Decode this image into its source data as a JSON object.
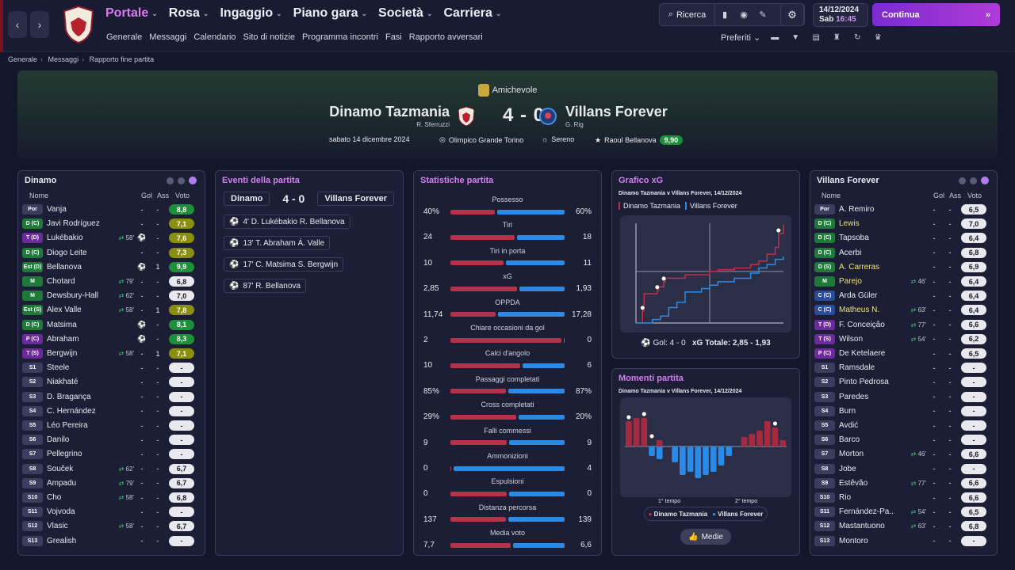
{
  "nav": {
    "menu": [
      "Portale",
      "Rosa",
      "Ingaggio",
      "Piano gara",
      "Società",
      "Carriera"
    ],
    "sub": [
      "Generale",
      "Messaggi",
      "Calendario",
      "Sito di notizie",
      "Programma incontri",
      "Fasi",
      "Rapporto avversari"
    ],
    "search": "Ricerca",
    "date": "14/12/2024",
    "day": "Sab",
    "time": "16:45",
    "continue": "Continua",
    "favorites": "Preferiti"
  },
  "breadcrumb": [
    "Generale",
    "Messaggi",
    "Rapporto fine partita"
  ],
  "match": {
    "competition": "Amichevole",
    "home": "Dinamo Tazmania",
    "home_mgr": "R. Sferruzzi",
    "away": "Villans Forever",
    "away_mgr": "G. Rig",
    "score": "4 - 0",
    "date": "sabato 14 dicembre 2024",
    "stadium": "Olimpico Grande Torino",
    "weather": "Sereno",
    "motm": "Raoul Bellanova",
    "motm_rating": "9,90"
  },
  "home_panel": {
    "title": "Dinamo",
    "headers": {
      "name": "Nome",
      "gol": "Gol",
      "ass": "Ass",
      "voto": "Voto"
    },
    "players": [
      {
        "pos": "Por",
        "c": "#3a3d5e",
        "name": "Vanja",
        "sub": "",
        "g": "-",
        "a": "-",
        "v": "8,8",
        "vc": "g"
      },
      {
        "pos": "D (C)",
        "c": "#1f7a3a",
        "name": "Javi Rodríguez",
        "sub": "",
        "g": "-",
        "a": "-",
        "v": "7,1",
        "vc": "y"
      },
      {
        "pos": "T (D)",
        "c": "#6a2a9a",
        "name": "Lukébakio",
        "sub": "58'",
        "g": "⚽",
        "a": "-",
        "v": "7,6",
        "vc": "y"
      },
      {
        "pos": "D (C)",
        "c": "#1f7a3a",
        "name": "Diogo Leite",
        "sub": "",
        "g": "-",
        "a": "-",
        "v": "7,3",
        "vc": "y"
      },
      {
        "pos": "Est (D)",
        "c": "#1f7a3a",
        "name": "Bellanova",
        "sub": "",
        "g": "⚽",
        "a": "1",
        "v": "9,9",
        "vc": "g"
      },
      {
        "pos": "M",
        "c": "#1f7a3a",
        "name": "Chotard",
        "sub": "79'",
        "g": "-",
        "a": "-",
        "v": "6,8",
        "vc": "n"
      },
      {
        "pos": "M",
        "c": "#1f7a3a",
        "name": "Dewsbury-Hall",
        "sub": "62'",
        "g": "-",
        "a": "-",
        "v": "7,0",
        "vc": "n"
      },
      {
        "pos": "Est (S)",
        "c": "#1f7a3a",
        "name": "Álex Valle",
        "sub": "58'",
        "g": "-",
        "a": "1",
        "v": "7,8",
        "vc": "y"
      },
      {
        "pos": "D (C)",
        "c": "#1f7a3a",
        "name": "Matsima",
        "sub": "",
        "g": "⚽",
        "a": "-",
        "v": "8,1",
        "vc": "g"
      },
      {
        "pos": "P (C)",
        "c": "#6a2a9a",
        "name": "Abraham",
        "sub": "",
        "g": "⚽",
        "a": "-",
        "v": "8,3",
        "vc": "g"
      },
      {
        "pos": "T (S)",
        "c": "#6a2a9a",
        "name": "Bergwijn",
        "sub": "58'",
        "g": "-",
        "a": "1",
        "v": "7,1",
        "vc": "y"
      },
      {
        "pos": "S1",
        "c": "#3a3d5e",
        "name": "Steele",
        "sub": "",
        "g": "-",
        "a": "-",
        "v": "-",
        "vc": "n"
      },
      {
        "pos": "S2",
        "c": "#3a3d5e",
        "name": "Niakhaté",
        "sub": "",
        "g": "-",
        "a": "-",
        "v": "-",
        "vc": "n"
      },
      {
        "pos": "S3",
        "c": "#3a3d5e",
        "name": "D. Bragança",
        "sub": "",
        "g": "-",
        "a": "-",
        "v": "-",
        "vc": "n"
      },
      {
        "pos": "S4",
        "c": "#3a3d5e",
        "name": "C. Hernández",
        "sub": "",
        "g": "-",
        "a": "-",
        "v": "-",
        "vc": "n"
      },
      {
        "pos": "S5",
        "c": "#3a3d5e",
        "name": "Léo Pereira",
        "sub": "",
        "g": "-",
        "a": "-",
        "v": "-",
        "vc": "n"
      },
      {
        "pos": "S6",
        "c": "#3a3d5e",
        "name": "Danilo",
        "sub": "",
        "g": "-",
        "a": "-",
        "v": "-",
        "vc": "n"
      },
      {
        "pos": "S7",
        "c": "#3a3d5e",
        "name": "Pellegrino",
        "sub": "",
        "g": "-",
        "a": "-",
        "v": "-",
        "vc": "n"
      },
      {
        "pos": "S8",
        "c": "#3a3d5e",
        "name": "Souček",
        "sub": "62'",
        "g": "-",
        "a": "-",
        "v": "6,7",
        "vc": "n"
      },
      {
        "pos": "S9",
        "c": "#3a3d5e",
        "name": "Ampadu",
        "sub": "79'",
        "g": "-",
        "a": "-",
        "v": "6,7",
        "vc": "n"
      },
      {
        "pos": "S10",
        "c": "#3a3d5e",
        "name": "Cho",
        "sub": "58'",
        "g": "-",
        "a": "-",
        "v": "6,8",
        "vc": "n"
      },
      {
        "pos": "S11",
        "c": "#3a3d5e",
        "name": "Vojvoda",
        "sub": "",
        "g": "-",
        "a": "-",
        "v": "-",
        "vc": "n"
      },
      {
        "pos": "S12",
        "c": "#3a3d5e",
        "name": "Vlasic",
        "sub": "58'",
        "g": "-",
        "a": "-",
        "v": "6,7",
        "vc": "n"
      },
      {
        "pos": "S13",
        "c": "#3a3d5e",
        "name": "Grealish",
        "sub": "",
        "g": "-",
        "a": "-",
        "v": "-",
        "vc": "n"
      }
    ]
  },
  "away_panel": {
    "title": "Villans Forever",
    "headers": {
      "name": "Nome",
      "gol": "Gol",
      "ass": "Ass",
      "voto": "Voto"
    },
    "players": [
      {
        "pos": "Por",
        "c": "#3a3d5e",
        "name": "Á. Remiro",
        "sub": "",
        "g": "-",
        "a": "-",
        "v": "6,5",
        "vc": "n",
        "y": false
      },
      {
        "pos": "D (C)",
        "c": "#1f7a3a",
        "name": "Lewis",
        "sub": "",
        "g": "-",
        "a": "-",
        "v": "7,0",
        "vc": "n",
        "y": true
      },
      {
        "pos": "D (C)",
        "c": "#1f7a3a",
        "name": "Tapsoba",
        "sub": "",
        "g": "-",
        "a": "-",
        "v": "6,4",
        "vc": "n",
        "y": false
      },
      {
        "pos": "D (C)",
        "c": "#1f7a3a",
        "name": "Acerbi",
        "sub": "",
        "g": "-",
        "a": "-",
        "v": "6,8",
        "vc": "n",
        "y": false
      },
      {
        "pos": "D (S)",
        "c": "#1f7a3a",
        "name": "A. Carreras",
        "sub": "",
        "g": "-",
        "a": "-",
        "v": "6,9",
        "vc": "n",
        "y": true
      },
      {
        "pos": "M",
        "c": "#1f7a3a",
        "name": "Parejo",
        "sub": "46'",
        "g": "-",
        "a": "-",
        "v": "6,4",
        "vc": "n",
        "y": true
      },
      {
        "pos": "C (C)",
        "c": "#2a4a9a",
        "name": "Arda Güler",
        "sub": "",
        "g": "-",
        "a": "-",
        "v": "6,4",
        "vc": "n",
        "y": false
      },
      {
        "pos": "C (C)",
        "c": "#2a4a9a",
        "name": "Matheus N.",
        "sub": "63'",
        "g": "-",
        "a": "-",
        "v": "6,4",
        "vc": "n",
        "y": true
      },
      {
        "pos": "T (D)",
        "c": "#6a2a9a",
        "name": "F. Conceição",
        "sub": "77'",
        "g": "-",
        "a": "-",
        "v": "6,6",
        "vc": "n",
        "y": false
      },
      {
        "pos": "T (S)",
        "c": "#6a2a9a",
        "name": "Wilson",
        "sub": "54'",
        "g": "-",
        "a": "-",
        "v": "6,2",
        "vc": "n",
        "y": false
      },
      {
        "pos": "P (C)",
        "c": "#6a2a9a",
        "name": "De Ketelaere",
        "sub": "",
        "g": "-",
        "a": "-",
        "v": "6,5",
        "vc": "n",
        "y": false
      },
      {
        "pos": "S1",
        "c": "#3a3d5e",
        "name": "Ramsdale",
        "sub": "",
        "g": "-",
        "a": "-",
        "v": "-",
        "vc": "n",
        "y": false
      },
      {
        "pos": "S2",
        "c": "#3a3d5e",
        "name": "Pinto Pedrosa",
        "sub": "",
        "g": "-",
        "a": "-",
        "v": "-",
        "vc": "n",
        "y": false
      },
      {
        "pos": "S3",
        "c": "#3a3d5e",
        "name": "Paredes",
        "sub": "",
        "g": "-",
        "a": "-",
        "v": "-",
        "vc": "n",
        "y": false
      },
      {
        "pos": "S4",
        "c": "#3a3d5e",
        "name": "Burn",
        "sub": "",
        "g": "-",
        "a": "-",
        "v": "-",
        "vc": "n",
        "y": false
      },
      {
        "pos": "S5",
        "c": "#3a3d5e",
        "name": "Avdić",
        "sub": "",
        "g": "-",
        "a": "-",
        "v": "-",
        "vc": "n",
        "y": false
      },
      {
        "pos": "S6",
        "c": "#3a3d5e",
        "name": "Barco",
        "sub": "",
        "g": "-",
        "a": "-",
        "v": "-",
        "vc": "n",
        "y": false
      },
      {
        "pos": "S7",
        "c": "#3a3d5e",
        "name": "Morton",
        "sub": "46'",
        "g": "-",
        "a": "-",
        "v": "6,6",
        "vc": "n",
        "y": false
      },
      {
        "pos": "S8",
        "c": "#3a3d5e",
        "name": "Jobe",
        "sub": "",
        "g": "-",
        "a": "-",
        "v": "-",
        "vc": "n",
        "y": false
      },
      {
        "pos": "S9",
        "c": "#3a3d5e",
        "name": "Estêvão",
        "sub": "77'",
        "g": "-",
        "a": "-",
        "v": "6,6",
        "vc": "n",
        "y": false
      },
      {
        "pos": "S10",
        "c": "#3a3d5e",
        "name": "Rio",
        "sub": "",
        "g": "-",
        "a": "-",
        "v": "6,6",
        "vc": "n",
        "y": false
      },
      {
        "pos": "S11",
        "c": "#3a3d5e",
        "name": "Fernández-Pa...",
        "sub": "54'",
        "g": "-",
        "a": "-",
        "v": "6,5",
        "vc": "n",
        "y": false
      },
      {
        "pos": "S12",
        "c": "#3a3d5e",
        "name": "Mastantuono",
        "sub": "63'",
        "g": "-",
        "a": "-",
        "v": "6,8",
        "vc": "n",
        "y": false
      },
      {
        "pos": "S13",
        "c": "#3a3d5e",
        "name": "Montoro",
        "sub": "",
        "g": "-",
        "a": "-",
        "v": "-",
        "vc": "n",
        "y": false
      }
    ]
  },
  "events": {
    "title": "Eventi della partita",
    "home": "Dinamo",
    "score": "4 - 0",
    "away": "Villans Forever",
    "items": [
      "4' D. Lukébakio R. Bellanova",
      "13' T. Abraham Á. Valle",
      "17' C. Matsima S. Bergwijn",
      "87' R. Bellanova"
    ]
  },
  "stats": {
    "title": "Statistiche partita",
    "rows": [
      {
        "label": "Possesso",
        "l": "40%",
        "r": "60%",
        "lv": 40,
        "rv": 60
      },
      {
        "label": "Tiri",
        "l": "24",
        "r": "18",
        "lv": 24,
        "rv": 18
      },
      {
        "label": "Tiri in porta",
        "l": "10",
        "r": "11",
        "lv": 10,
        "rv": 11
      },
      {
        "label": "xG",
        "l": "2,85",
        "r": "1,93",
        "lv": 2.85,
        "rv": 1.93
      },
      {
        "label": "OPPDA",
        "l": "11,74",
        "r": "17,28",
        "lv": 11.74,
        "rv": 17.28
      },
      {
        "label": "Chiare occasioni da gol",
        "l": "2",
        "r": "0",
        "lv": 2,
        "rv": 0
      },
      {
        "label": "Calci d'angolo",
        "l": "10",
        "r": "6",
        "lv": 10,
        "rv": 6
      },
      {
        "label": "Passaggi completati",
        "l": "85%",
        "r": "87%",
        "lv": 85,
        "rv": 87
      },
      {
        "label": "Cross completati",
        "l": "29%",
        "r": "20%",
        "lv": 29,
        "rv": 20
      },
      {
        "label": "Falli commessi",
        "l": "9",
        "r": "9",
        "lv": 9,
        "rv": 9
      },
      {
        "label": "Ammonizioni",
        "l": "0",
        "r": "4",
        "lv": 0,
        "rv": 4
      },
      {
        "label": "Espulsioni",
        "l": "0",
        "r": "0",
        "lv": 0,
        "rv": 0
      },
      {
        "label": "Distanza percorsa",
        "l": "137",
        "r": "139",
        "lv": 137,
        "rv": 139
      },
      {
        "label": "Media voto",
        "l": "7,7",
        "r": "6,6",
        "lv": 7.7,
        "rv": 6.6
      }
    ]
  },
  "xg": {
    "title": "Grafico xG",
    "subtitle": "Dinamo Tazmania v Villans Forever, 14/12/2024",
    "legend_home": "Dinamo Tazmania",
    "legend_away": "Villans Forever",
    "footer_gol": "Gol: 4 - 0",
    "footer_xg": "xG Totale: 2,85 - 1,93"
  },
  "momentum": {
    "title": "Momenti partita",
    "subtitle": "Dinamo Tazmania v Villans Forever, 14/12/2024",
    "half1": "1° tempo",
    "half2": "2° tempo",
    "legend_home": "Dinamo Tazmania",
    "legend_away": "Villans Forever",
    "button": "Medie"
  },
  "chart_data": {
    "type": "line",
    "title": "Grafico xG",
    "series": [
      {
        "name": "Dinamo Tazmania",
        "color": "#c0304a",
        "x": [
          0,
          4,
          5,
          13,
          14,
          17,
          18,
          30,
          45,
          50,
          60,
          70,
          75,
          80,
          85,
          87,
          90
        ],
        "y": [
          0,
          0.35,
          0.85,
          0.95,
          1.05,
          1.2,
          1.3,
          1.4,
          1.5,
          1.55,
          1.6,
          1.7,
          1.8,
          2.0,
          2.2,
          2.6,
          2.85
        ]
      },
      {
        "name": "Villans Forever",
        "color": "#2a8ae8",
        "x": [
          0,
          10,
          15,
          20,
          25,
          30,
          40,
          45,
          50,
          60,
          70,
          75,
          80,
          85,
          90
        ],
        "y": [
          0,
          0.1,
          0.2,
          0.45,
          0.6,
          0.9,
          1.0,
          1.1,
          1.2,
          1.3,
          1.45,
          1.6,
          1.7,
          1.85,
          1.93
        ]
      }
    ],
    "goals": [
      {
        "team": "home",
        "minute": 4
      },
      {
        "team": "home",
        "minute": 13
      },
      {
        "team": "home",
        "minute": 17
      },
      {
        "team": "home",
        "minute": 87
      }
    ],
    "momentum": {
      "home": [
        0.8,
        0.9,
        0.9,
        0,
        0.2,
        0,
        0,
        0,
        0,
        0,
        0,
        0,
        0,
        0,
        0,
        0.3,
        0.4,
        0.5,
        0.8,
        0.6,
        0.2
      ],
      "away": [
        0,
        0,
        0,
        0.3,
        0.4,
        0,
        0.5,
        0.9,
        0.8,
        1.0,
        0.9,
        0.8,
        0.6,
        0.3,
        0,
        0,
        0,
        0,
        0,
        0,
        0
      ]
    }
  }
}
